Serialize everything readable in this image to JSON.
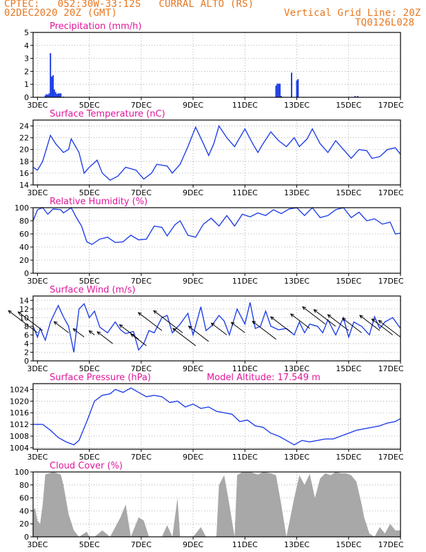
{
  "header": {
    "line1": "CPTEC:   052:30W-33:12S   CURRAL ALTO (RS)",
    "line2": "02DEC2020 20Z (GMT)",
    "grid_note": "Vertical Grid Line: 20Z",
    "run_code": "TQ0126L028"
  },
  "colors": {
    "header": "#e8761e",
    "title": "#e0169a",
    "series": "#1f3fe6",
    "cloud": "#a8a8a8",
    "arrow": "#000000"
  },
  "x_ticks": [
    "3DEC",
    "5DEC",
    "7DEC",
    "9DEC",
    "11DEC",
    "13DEC",
    "15DEC",
    "17DEC"
  ],
  "chart_data": [
    {
      "type": "bar",
      "title": "Precipitation (mm/h)",
      "unit": "mm/h",
      "x_range_days": [
        2.83,
        17.0
      ],
      "ylim": [
        0,
        5
      ],
      "yticks": [
        0,
        1,
        2,
        3,
        4,
        5
      ],
      "points": [
        [
          3.3,
          0.15
        ],
        [
          3.35,
          0.25
        ],
        [
          3.4,
          0.2
        ],
        [
          3.45,
          0.3
        ],
        [
          3.5,
          3.4
        ],
        [
          3.55,
          1.6
        ],
        [
          3.6,
          1.7
        ],
        [
          3.65,
          0.6
        ],
        [
          3.7,
          0.4
        ],
        [
          3.75,
          0.25
        ],
        [
          3.8,
          0.3
        ],
        [
          3.85,
          0.3
        ],
        [
          3.9,
          0.3
        ],
        [
          4.0,
          0.05
        ],
        [
          12.2,
          0.9
        ],
        [
          12.25,
          1.05
        ],
        [
          12.3,
          1.05
        ],
        [
          12.35,
          1.05
        ],
        [
          12.4,
          0.1
        ],
        [
          12.8,
          1.9
        ],
        [
          13.0,
          1.3
        ],
        [
          13.05,
          1.4
        ],
        [
          15.25,
          0.1
        ],
        [
          15.35,
          0.1
        ]
      ]
    },
    {
      "type": "line",
      "title": "Surface Temperature (nC)",
      "unit": "nC",
      "x_range_days": [
        2.83,
        17.0
      ],
      "ylim": [
        14,
        25
      ],
      "yticks": [
        14,
        16,
        18,
        20,
        22,
        24
      ],
      "points": [
        [
          2.83,
          17
        ],
        [
          3.0,
          16.5
        ],
        [
          3.2,
          18
        ],
        [
          3.5,
          22.4
        ],
        [
          3.7,
          21
        ],
        [
          4.0,
          19.5
        ],
        [
          4.2,
          20
        ],
        [
          4.3,
          21.8
        ],
        [
          4.6,
          19.5
        ],
        [
          4.8,
          16
        ],
        [
          5.0,
          17
        ],
        [
          5.3,
          18.2
        ],
        [
          5.5,
          16
        ],
        [
          5.8,
          14.8
        ],
        [
          6.1,
          15.5
        ],
        [
          6.4,
          17
        ],
        [
          6.8,
          16.5
        ],
        [
          7.1,
          15
        ],
        [
          7.4,
          16
        ],
        [
          7.6,
          17.5
        ],
        [
          8.0,
          17.2
        ],
        [
          8.2,
          16
        ],
        [
          8.5,
          17.5
        ],
        [
          8.8,
          20.5
        ],
        [
          9.1,
          23.8
        ],
        [
          9.4,
          21
        ],
        [
          9.6,
          19
        ],
        [
          9.8,
          21
        ],
        [
          10.0,
          24
        ],
        [
          10.3,
          22
        ],
        [
          10.6,
          20.5
        ],
        [
          10.8,
          22
        ],
        [
          11.0,
          23.5
        ],
        [
          11.3,
          21
        ],
        [
          11.5,
          19.5
        ],
        [
          11.7,
          21
        ],
        [
          12.0,
          23
        ],
        [
          12.3,
          21.5
        ],
        [
          12.6,
          20.5
        ],
        [
          12.9,
          22
        ],
        [
          13.1,
          20.5
        ],
        [
          13.4,
          21.8
        ],
        [
          13.6,
          23.5
        ],
        [
          13.9,
          21
        ],
        [
          14.2,
          19.5
        ],
        [
          14.5,
          21.5
        ],
        [
          14.8,
          20
        ],
        [
          15.1,
          18.5
        ],
        [
          15.4,
          20
        ],
        [
          15.7,
          19.8
        ],
        [
          15.9,
          18.5
        ],
        [
          16.2,
          18.8
        ],
        [
          16.5,
          20
        ],
        [
          16.8,
          20.3
        ],
        [
          17.0,
          19.2
        ]
      ]
    },
    {
      "type": "line",
      "title": "Relative Humidity (%)",
      "unit": "%",
      "x_range_days": [
        2.83,
        17.0
      ],
      "ylim": [
        0,
        100
      ],
      "yticks": [
        0,
        20,
        40,
        60,
        80,
        100
      ],
      "points": [
        [
          2.83,
          80
        ],
        [
          3.0,
          97
        ],
        [
          3.2,
          100
        ],
        [
          3.4,
          90
        ],
        [
          3.6,
          98
        ],
        [
          3.9,
          97
        ],
        [
          4.0,
          92
        ],
        [
          4.3,
          100
        ],
        [
          4.5,
          85
        ],
        [
          4.7,
          72
        ],
        [
          4.9,
          48
        ],
        [
          5.1,
          44
        ],
        [
          5.4,
          52
        ],
        [
          5.7,
          55
        ],
        [
          6.0,
          47
        ],
        [
          6.3,
          48
        ],
        [
          6.6,
          58
        ],
        [
          6.9,
          51
        ],
        [
          7.2,
          52
        ],
        [
          7.5,
          72
        ],
        [
          7.8,
          70
        ],
        [
          8.0,
          57
        ],
        [
          8.3,
          74
        ],
        [
          8.5,
          80
        ],
        [
          8.8,
          58
        ],
        [
          9.1,
          55
        ],
        [
          9.4,
          75
        ],
        [
          9.7,
          84
        ],
        [
          10.0,
          72
        ],
        [
          10.3,
          88
        ],
        [
          10.6,
          72
        ],
        [
          10.9,
          90
        ],
        [
          11.2,
          86
        ],
        [
          11.5,
          92
        ],
        [
          11.8,
          88
        ],
        [
          12.1,
          97
        ],
        [
          12.4,
          91
        ],
        [
          12.7,
          98
        ],
        [
          13.0,
          100
        ],
        [
          13.3,
          88
        ],
        [
          13.6,
          100
        ],
        [
          13.9,
          85
        ],
        [
          14.2,
          88
        ],
        [
          14.5,
          97
        ],
        [
          14.8,
          100
        ],
        [
          15.1,
          85
        ],
        [
          15.4,
          93
        ],
        [
          15.7,
          80
        ],
        [
          16.0,
          83
        ],
        [
          16.3,
          75
        ],
        [
          16.6,
          78
        ],
        [
          16.8,
          60
        ],
        [
          17.0,
          61
        ]
      ]
    },
    {
      "type": "line",
      "title": "Surface Wind (m/s)",
      "unit": "m/s",
      "x_range_days": [
        2.83,
        17.0
      ],
      "ylim": [
        0,
        15
      ],
      "yticks": [
        0,
        2,
        4,
        6,
        8,
        10,
        12,
        14
      ],
      "points": [
        [
          2.83,
          8
        ],
        [
          3.0,
          5.5
        ],
        [
          3.1,
          7.5
        ],
        [
          3.3,
          4.8
        ],
        [
          3.5,
          9
        ],
        [
          3.8,
          12.8
        ],
        [
          3.9,
          11.5
        ],
        [
          4.0,
          10.2
        ],
        [
          4.2,
          8
        ],
        [
          4.4,
          2
        ],
        [
          4.6,
          12
        ],
        [
          4.8,
          13.2
        ],
        [
          5.0,
          10
        ],
        [
          5.2,
          11.5
        ],
        [
          5.4,
          7.8
        ],
        [
          5.7,
          6.5
        ],
        [
          6.0,
          9
        ],
        [
          6.2,
          7.2
        ],
        [
          6.4,
          6.3
        ],
        [
          6.7,
          6.8
        ],
        [
          6.9,
          2.5
        ],
        [
          7.1,
          4
        ],
        [
          7.3,
          7
        ],
        [
          7.5,
          6.5
        ],
        [
          7.8,
          10
        ],
        [
          8.0,
          10.5
        ],
        [
          8.2,
          6.5
        ],
        [
          8.5,
          8.5
        ],
        [
          8.8,
          11
        ],
        [
          9.0,
          6
        ],
        [
          9.3,
          12.5
        ],
        [
          9.5,
          7
        ],
        [
          9.7,
          8
        ],
        [
          10.0,
          10.5
        ],
        [
          10.2,
          9.2
        ],
        [
          10.4,
          6
        ],
        [
          10.7,
          12
        ],
        [
          11.0,
          8.5
        ],
        [
          11.2,
          13.5
        ],
        [
          11.4,
          7.5
        ],
        [
          11.6,
          8
        ],
        [
          11.8,
          11.5
        ],
        [
          12.0,
          8
        ],
        [
          12.3,
          7.2
        ],
        [
          12.6,
          7.5
        ],
        [
          12.9,
          6
        ],
        [
          13.1,
          9
        ],
        [
          13.3,
          6.5
        ],
        [
          13.5,
          8.5
        ],
        [
          13.8,
          8
        ],
        [
          14.0,
          6.5
        ],
        [
          14.2,
          9.5
        ],
        [
          14.5,
          6
        ],
        [
          14.8,
          10
        ],
        [
          15.0,
          5.5
        ],
        [
          15.2,
          9
        ],
        [
          15.5,
          8
        ],
        [
          15.8,
          6
        ],
        [
          16.0,
          10.2
        ],
        [
          16.2,
          7.5
        ],
        [
          16.4,
          9
        ],
        [
          16.7,
          10
        ],
        [
          17.0,
          7.5
        ]
      ],
      "arrows": [
        [
          3.0,
          6.5,
          -3.2
        ],
        [
          3.2,
          7.0,
          -2.7
        ],
        [
          4.2,
          6.5,
          -1.6
        ],
        [
          4.8,
          5.5,
          -1.2
        ],
        [
          5.2,
          6.0,
          -0.6
        ],
        [
          5.9,
          4.0,
          -1.7
        ],
        [
          6.9,
          5.0,
          -2.1
        ],
        [
          7.2,
          3.5,
          -1.7
        ],
        [
          7.8,
          7.0,
          -2.6
        ],
        [
          8.6,
          6.5,
          -3.2
        ],
        [
          9.1,
          3.5,
          -2.5
        ],
        [
          9.6,
          4.5,
          -2.2
        ],
        [
          10.3,
          6.0,
          -1.7
        ],
        [
          11.0,
          6.5,
          -1.5
        ],
        [
          12.2,
          5.0,
          -2.6
        ],
        [
          12.8,
          6.5,
          -2.3
        ],
        [
          13.5,
          7.5,
          -2.1
        ],
        [
          14.1,
          8.5,
          -2.5
        ],
        [
          14.5,
          8.0,
          -2.4
        ],
        [
          15.0,
          7.0,
          -2.3
        ],
        [
          15.5,
          6.5,
          -2.1
        ],
        [
          16.2,
          7.0,
          -2.2
        ],
        [
          16.7,
          6.0,
          -2.3
        ],
        [
          17.0,
          5.5,
          -2.4
        ]
      ]
    },
    {
      "type": "line",
      "title": "Surface Pressure (hPa)",
      "subtitle": "Model Altitude: 17.549  m",
      "unit": "hPa",
      "x_range_days": [
        2.83,
        17.0
      ],
      "ylim": [
        1003.5,
        1026
      ],
      "yticks": [
        1004,
        1008,
        1012,
        1016,
        1020,
        1024
      ],
      "points": [
        [
          2.83,
          1012
        ],
        [
          3.2,
          1012
        ],
        [
          3.5,
          1010
        ],
        [
          3.8,
          1007.5
        ],
        [
          4.1,
          1006
        ],
        [
          4.4,
          1005
        ],
        [
          4.6,
          1006.5
        ],
        [
          4.9,
          1013
        ],
        [
          5.2,
          1020
        ],
        [
          5.5,
          1022
        ],
        [
          5.8,
          1022.5
        ],
        [
          6.0,
          1024
        ],
        [
          6.3,
          1023
        ],
        [
          6.6,
          1024.5
        ],
        [
          6.9,
          1023
        ],
        [
          7.2,
          1021.5
        ],
        [
          7.5,
          1022
        ],
        [
          7.8,
          1021.5
        ],
        [
          8.1,
          1019.5
        ],
        [
          8.4,
          1020
        ],
        [
          8.7,
          1018
        ],
        [
          9.0,
          1019
        ],
        [
          9.3,
          1017.5
        ],
        [
          9.6,
          1018
        ],
        [
          9.9,
          1016.5
        ],
        [
          10.2,
          1016
        ],
        [
          10.5,
          1015.5
        ],
        [
          10.8,
          1013
        ],
        [
          11.1,
          1013.5
        ],
        [
          11.4,
          1011.5
        ],
        [
          11.7,
          1011
        ],
        [
          12.0,
          1009
        ],
        [
          12.3,
          1008
        ],
        [
          12.6,
          1006.5
        ],
        [
          12.9,
          1005
        ],
        [
          13.2,
          1006.5
        ],
        [
          13.5,
          1006
        ],
        [
          13.8,
          1006.5
        ],
        [
          14.1,
          1007
        ],
        [
          14.4,
          1007
        ],
        [
          14.7,
          1008
        ],
        [
          15.0,
          1009
        ],
        [
          15.3,
          1010
        ],
        [
          15.6,
          1010.5
        ],
        [
          15.9,
          1011
        ],
        [
          16.2,
          1011.5
        ],
        [
          16.5,
          1012.5
        ],
        [
          16.8,
          1013
        ],
        [
          17.0,
          1014
        ]
      ]
    },
    {
      "type": "area",
      "title": "Cloud Cover (%)",
      "unit": "%",
      "x_range_days": [
        2.83,
        17.0
      ],
      "ylim": [
        0,
        100
      ],
      "yticks": [
        0,
        20,
        40,
        60,
        80,
        100
      ],
      "points": [
        [
          2.83,
          40
        ],
        [
          2.9,
          45
        ],
        [
          3.0,
          25
        ],
        [
          3.1,
          20
        ],
        [
          3.2,
          50
        ],
        [
          3.3,
          96
        ],
        [
          3.6,
          100
        ],
        [
          3.9,
          96
        ],
        [
          4.0,
          80
        ],
        [
          4.2,
          35
        ],
        [
          4.4,
          10
        ],
        [
          4.6,
          0
        ],
        [
          4.9,
          8
        ],
        [
          5.0,
          0
        ],
        [
          5.2,
          0
        ],
        [
          5.5,
          10
        ],
        [
          5.8,
          0
        ],
        [
          6.2,
          30
        ],
        [
          6.4,
          50
        ],
        [
          6.6,
          0
        ],
        [
          6.9,
          30
        ],
        [
          7.1,
          25
        ],
        [
          7.3,
          0
        ],
        [
          7.8,
          0
        ],
        [
          8.0,
          18
        ],
        [
          8.2,
          0
        ],
        [
          8.4,
          60
        ],
        [
          8.5,
          0
        ],
        [
          9.0,
          0
        ],
        [
          9.3,
          15
        ],
        [
          9.5,
          0
        ],
        [
          9.9,
          0
        ],
        [
          10.0,
          80
        ],
        [
          10.2,
          95
        ],
        [
          10.4,
          50
        ],
        [
          10.6,
          0
        ],
        [
          10.7,
          95
        ],
        [
          10.9,
          100
        ],
        [
          11.2,
          100
        ],
        [
          11.5,
          96
        ],
        [
          11.7,
          100
        ],
        [
          12.0,
          98
        ],
        [
          12.2,
          95
        ],
        [
          12.4,
          50
        ],
        [
          12.6,
          0
        ],
        [
          12.9,
          60
        ],
        [
          13.1,
          95
        ],
        [
          13.3,
          80
        ],
        [
          13.5,
          97
        ],
        [
          13.7,
          60
        ],
        [
          13.9,
          90
        ],
        [
          14.1,
          98
        ],
        [
          14.3,
          95
        ],
        [
          14.5,
          100
        ],
        [
          14.7,
          98
        ],
        [
          14.9,
          98
        ],
        [
          15.1,
          95
        ],
        [
          15.3,
          85
        ],
        [
          15.5,
          50
        ],
        [
          15.6,
          30
        ],
        [
          15.8,
          5
        ],
        [
          16.0,
          0
        ],
        [
          16.2,
          15
        ],
        [
          16.4,
          5
        ],
        [
          16.6,
          20
        ],
        [
          16.8,
          10
        ],
        [
          17.0,
          10
        ]
      ]
    }
  ]
}
